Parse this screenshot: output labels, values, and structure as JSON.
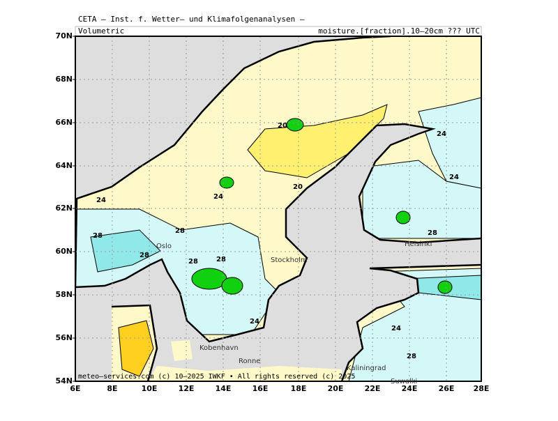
{
  "header": {
    "title": "CETA – Inst. f. Wetter– und Klimafolgenanalysen –",
    "left_label": "Volumetric",
    "right_label": "moisture.[fraction].10–20cm ??? UTC"
  },
  "axes": {
    "lat_labels": [
      "70N",
      "68N",
      "66N",
      "64N",
      "62N",
      "60N",
      "58N",
      "56N",
      "54N"
    ],
    "lon_labels": [
      "6E",
      "8E",
      "10E",
      "12E",
      "14E",
      "16E",
      "18E",
      "20E",
      "22E",
      "24E",
      "26E",
      "28E"
    ]
  },
  "contour_labels": [
    "24",
    "28",
    "28",
    "28",
    "28",
    "20",
    "20",
    "24",
    "24",
    "24",
    "24",
    "28",
    "28",
    "24",
    "28"
  ],
  "places": [
    "Oslo",
    "Stockholm",
    "Kobenhavn",
    "Ronne",
    "Kaliningrad",
    "Helsinki",
    "Suwalki"
  ],
  "footer": "meteo–services.com (c) 10–2025 IWKF • All rights reserved (c) 2025"
}
